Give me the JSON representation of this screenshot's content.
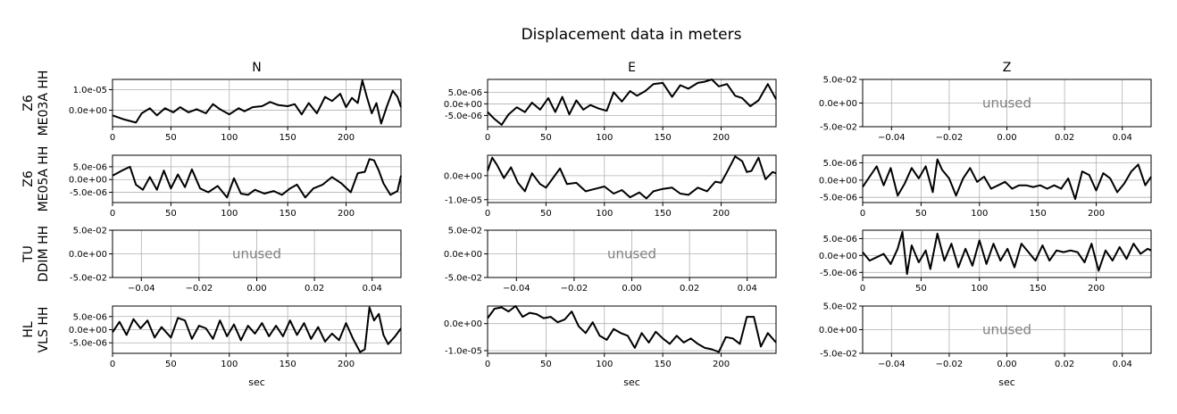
{
  "chart_data": {
    "type": "line",
    "title": "Displacement data in meters",
    "columns": [
      "N",
      "E",
      "Z"
    ],
    "row_labels": [
      [
        "Z6",
        "ME03A HH"
      ],
      [
        "Z6",
        "ME05A HH"
      ],
      [
        "TU",
        "DDIM HH"
      ],
      [
        "HL",
        "VLS HH"
      ]
    ],
    "xlabel": "sec",
    "unused_label": "unused",
    "line_color": "#000000",
    "grid": true,
    "panels": [
      {
        "id": "r0c0",
        "row": 0,
        "col": 0,
        "unused": false,
        "xlim": [
          0,
          247
        ],
        "ylim": [
          -8e-06,
          1.5e-05
        ],
        "xticks": [
          0,
          50,
          100,
          150,
          200
        ],
        "xticklabels": [
          "0",
          "50",
          "100",
          "150",
          "200"
        ],
        "yticks": [
          1e-05,
          0
        ],
        "yticklabels": [
          "1.0e-05",
          "0.0e+00"
        ],
        "x": [
          0,
          10,
          20,
          25,
          32,
          38,
          45,
          52,
          58,
          65,
          72,
          80,
          86,
          92,
          100,
          108,
          113,
          120,
          128,
          135,
          142,
          150,
          156,
          162,
          168,
          175,
          182,
          188,
          195,
          200,
          205,
          210,
          214,
          218,
          222,
          226,
          230,
          235,
          240,
          244,
          247
        ],
        "values": [
          -2.5e-06,
          -4.5e-06,
          -6e-06,
          -1.5e-06,
          1e-06,
          -2.5e-06,
          1e-06,
          -1e-06,
          1.5e-06,
          -1e-06,
          5e-07,
          -1.5e-06,
          3e-06,
          5e-07,
          -2e-06,
          1e-06,
          -5e-07,
          1.5e-06,
          2e-06,
          4e-06,
          2.5e-06,
          2e-06,
          3e-06,
          -2e-06,
          3.5e-06,
          -1.5e-06,
          6.5e-06,
          4.5e-06,
          8e-06,
          1.5e-06,
          6e-06,
          3.5e-06,
          1.45e-05,
          6e-06,
          -1.5e-06,
          3.5e-06,
          -6.5e-06,
          2e-06,
          9.5e-06,
          6.5e-06,
          1.5e-06
        ]
      },
      {
        "id": "r0c1",
        "row": 0,
        "col": 1,
        "unused": false,
        "xlim": [
          0,
          247
        ],
        "ylim": [
          -9.8e-06,
          1.05e-05
        ],
        "xticks": [
          0,
          50,
          100,
          150,
          200
        ],
        "xticklabels": [
          "0",
          "50",
          "100",
          "150",
          "200"
        ],
        "yticks": [
          5e-06,
          0,
          -5e-06
        ],
        "yticklabels": [
          "5.0e-06",
          "0.0e+00",
          "-5.0e-06"
        ],
        "x": [
          0,
          6,
          12,
          18,
          25,
          32,
          38,
          45,
          52,
          58,
          64,
          70,
          76,
          82,
          88,
          95,
          102,
          108,
          115,
          122,
          128,
          135,
          142,
          150,
          158,
          165,
          172,
          180,
          186,
          192,
          198,
          205,
          212,
          218,
          225,
          232,
          240,
          247
        ],
        "values": [
          -3.5e-06,
          -6.5e-06,
          -9e-06,
          -4.5e-06,
          -1.5e-06,
          -3.5e-06,
          5e-07,
          -2.5e-06,
          2.5e-06,
          -3.5e-06,
          3e-06,
          -4.5e-06,
          1.5e-06,
          -2.5e-06,
          -5e-07,
          -2e-06,
          -3e-06,
          5e-06,
          1e-06,
          5.5e-06,
          3.5e-06,
          5.5e-06,
          8.5e-06,
          9e-06,
          3e-06,
          8e-06,
          6.5e-06,
          9e-06,
          9.5e-06,
          1.1e-05,
          7.5e-06,
          8.5e-06,
          3.5e-06,
          2.5e-06,
          -1e-06,
          1.5e-06,
          8.5e-06,
          2e-06
        ]
      },
      {
        "id": "r0c2",
        "row": 0,
        "col": 2,
        "unused": true,
        "xlim": [
          -0.05,
          0.05
        ],
        "ylim": [
          -0.05,
          0.05
        ],
        "xticks": [
          -0.04,
          -0.02,
          0,
          0.02,
          0.04
        ],
        "xticklabels": [
          "−0.04",
          "−0.02",
          "0.00",
          "0.02",
          "0.04"
        ],
        "yticks": [
          0.05,
          0,
          -0.05
        ],
        "yticklabels": [
          "5.0e-02",
          "0.0e+00",
          "-5.0e-02"
        ]
      },
      {
        "id": "r1c0",
        "row": 1,
        "col": 0,
        "unused": false,
        "xlim": [
          0,
          247
        ],
        "ylim": [
          -9e-06,
          9.5e-06
        ],
        "xticks": [
          0,
          50,
          100,
          150,
          200
        ],
        "xticklabels": [
          "0",
          "50",
          "100",
          "150",
          "200"
        ],
        "yticks": [
          5e-06,
          0,
          -5e-06
        ],
        "yticklabels": [
          "5.0e-06",
          "0.0e+00",
          "-5.0e-06"
        ],
        "x": [
          0,
          8,
          15,
          20,
          26,
          32,
          38,
          44,
          50,
          56,
          62,
          68,
          75,
          82,
          90,
          98,
          104,
          110,
          116,
          122,
          130,
          138,
          145,
          152,
          158,
          165,
          172,
          180,
          188,
          196,
          204,
          210,
          216,
          220,
          224,
          228,
          232,
          238,
          244,
          247
        ],
        "values": [
          1.5e-06,
          3.5e-06,
          5e-06,
          -2e-06,
          -4e-06,
          1e-06,
          -4e-06,
          3.5e-06,
          -3.5e-06,
          2e-06,
          -3e-06,
          4e-06,
          -3.5e-06,
          -5e-06,
          -2.5e-06,
          -7e-06,
          5e-07,
          -5.5e-06,
          -6e-06,
          -4e-06,
          -5.5e-06,
          -4.5e-06,
          -6e-06,
          -3.5e-06,
          -2e-06,
          -7e-06,
          -3.5e-06,
          -2e-06,
          1e-06,
          -1.5e-06,
          -5e-06,
          2.5e-06,
          3e-06,
          8e-06,
          7.5e-06,
          3.5e-06,
          -1.5e-06,
          -6e-06,
          -4.5e-06,
          1.5e-06
        ]
      },
      {
        "id": "r1c1",
        "row": 1,
        "col": 1,
        "unused": false,
        "xlim": [
          0,
          247
        ],
        "ylim": [
          -1.12e-05,
          8.5e-06
        ],
        "xticks": [
          0,
          50,
          100,
          150,
          200
        ],
        "xticklabels": [
          "0",
          "50",
          "100",
          "150",
          "200"
        ],
        "yticks": [
          0,
          -1e-05
        ],
        "yticklabels": [
          "0.0e+00",
          "-1.0e-05"
        ],
        "x": [
          0,
          4,
          8,
          14,
          20,
          26,
          32,
          38,
          45,
          50,
          56,
          62,
          68,
          76,
          84,
          92,
          100,
          108,
          115,
          122,
          130,
          136,
          142,
          150,
          158,
          165,
          172,
          180,
          188,
          195,
          200,
          205,
          212,
          218,
          222,
          226,
          232,
          238,
          244,
          247
        ],
        "values": [
          2e-06,
          7.5e-06,
          4.5e-06,
          -1e-06,
          3.5e-06,
          -3e-06,
          -6.5e-06,
          1e-06,
          -3.5e-06,
          -5e-06,
          -1e-06,
          3e-06,
          -3.5e-06,
          -3e-06,
          -6.5e-06,
          -5.5e-06,
          -4.5e-06,
          -7.5e-06,
          -6e-06,
          -9e-06,
          -7e-06,
          -9.5e-06,
          -6.5e-06,
          -5.5e-06,
          -5e-06,
          -7.5e-06,
          -8e-06,
          -5e-06,
          -6.5e-06,
          -2.5e-06,
          -3e-06,
          1.5e-06,
          8e-06,
          6e-06,
          1.5e-06,
          2e-06,
          7.5e-06,
          -1.5e-06,
          1.5e-06,
          1e-06
        ]
      },
      {
        "id": "r1c2",
        "row": 1,
        "col": 2,
        "unused": false,
        "xlim": [
          0,
          247
        ],
        "ylim": [
          -6.5e-06,
          7.2e-06
        ],
        "xticks": [
          0,
          50,
          100,
          150,
          200
        ],
        "xticklabels": [
          "0",
          "50",
          "100",
          "150",
          "200"
        ],
        "yticks": [
          5e-06,
          0,
          -5e-06
        ],
        "yticklabels": [
          "5.0e-06",
          "0.0e+00",
          "-5.0e-06"
        ],
        "x": [
          0,
          6,
          12,
          18,
          24,
          30,
          36,
          42,
          48,
          54,
          60,
          64,
          68,
          74,
          80,
          86,
          92,
          98,
          104,
          110,
          116,
          122,
          128,
          134,
          140,
          146,
          152,
          158,
          164,
          170,
          176,
          182,
          188,
          194,
          200,
          206,
          212,
          218,
          224,
          230,
          236,
          242,
          247
        ],
        "values": [
          -2e-06,
          1e-06,
          4e-06,
          -1.5e-06,
          3.5e-06,
          -4.5e-06,
          -1e-06,
          3.5e-06,
          5e-07,
          4e-06,
          -3.5e-06,
          6e-06,
          3e-06,
          5e-07,
          -4.5e-06,
          5e-07,
          3.5e-06,
          -5e-07,
          1e-06,
          -2.5e-06,
          -1.5e-06,
          -5e-07,
          -2.5e-06,
          -1.5e-06,
          -1.5e-06,
          -2e-06,
          -1.5e-06,
          -2.5e-06,
          -1.5e-06,
          -2.5e-06,
          5e-07,
          -5.5e-06,
          2.5e-06,
          1.5e-06,
          -3e-06,
          2e-06,
          5e-07,
          -3.5e-06,
          -1e-06,
          2.5e-06,
          4.5e-06,
          -1.5e-06,
          1e-06
        ]
      },
      {
        "id": "r2c0",
        "row": 2,
        "col": 0,
        "unused": true,
        "xlim": [
          -0.05,
          0.05
        ],
        "ylim": [
          -0.05,
          0.05
        ],
        "xticks": [
          -0.04,
          -0.02,
          0,
          0.02,
          0.04
        ],
        "xticklabels": [
          "−0.04",
          "−0.02",
          "0.00",
          "0.02",
          "0.04"
        ],
        "yticks": [
          0.05,
          0,
          -0.05
        ],
        "yticklabels": [
          "5.0e-02",
          "0.0e+00",
          "-5.0e-02"
        ]
      },
      {
        "id": "r2c1",
        "row": 2,
        "col": 1,
        "unused": true,
        "xlim": [
          -0.05,
          0.05
        ],
        "ylim": [
          -0.05,
          0.05
        ],
        "xticks": [
          -0.04,
          -0.02,
          0,
          0.02,
          0.04
        ],
        "xticklabels": [
          "−0.04",
          "−0.02",
          "0.00",
          "0.02",
          "0.04"
        ],
        "yticks": [
          0.05,
          0,
          -0.05
        ],
        "yticklabels": [
          "5.0e-02",
          "0.0e+00",
          "-5.0e-02"
        ]
      },
      {
        "id": "r2c2",
        "row": 2,
        "col": 2,
        "unused": false,
        "xlim": [
          0,
          247
        ],
        "ylim": [
          -6.5e-06,
          7.5e-06
        ],
        "xticks": [
          0,
          50,
          100,
          150,
          200
        ],
        "xticklabels": [
          "0",
          "50",
          "100",
          "150",
          "200"
        ],
        "yticks": [
          5e-06,
          0,
          -5e-06
        ],
        "yticklabels": [
          "5.0e-06",
          "0.0e+00",
          "-5.0e-06"
        ],
        "x": [
          0,
          6,
          12,
          18,
          24,
          30,
          34,
          38,
          42,
          48,
          54,
          58,
          64,
          70,
          76,
          82,
          88,
          94,
          100,
          106,
          112,
          118,
          124,
          130,
          136,
          142,
          148,
          154,
          160,
          166,
          172,
          178,
          184,
          190,
          196,
          202,
          208,
          214,
          220,
          226,
          232,
          238,
          244,
          247
        ],
        "values": [
          1e-06,
          -1.5e-06,
          -5e-07,
          5e-07,
          -2.5e-06,
          2e-06,
          7e-06,
          -5.5e-06,
          3e-06,
          -2e-06,
          1.5e-06,
          -4e-06,
          6.5e-06,
          -1.5e-06,
          3.5e-06,
          -3.5e-06,
          2e-06,
          -3e-06,
          4.5e-06,
          -2.5e-06,
          3.5e-06,
          -1.5e-06,
          2e-06,
          -3.5e-06,
          3.5e-06,
          1e-06,
          -1.5e-06,
          3e-06,
          -1.5e-06,
          1.5e-06,
          1e-06,
          1.5e-06,
          1e-06,
          -2e-06,
          3.5e-06,
          -4.5e-06,
          1.5e-06,
          -1.5e-06,
          2.5e-06,
          -1e-06,
          3.5e-06,
          5e-07,
          2e-06,
          1.5e-06
        ]
      },
      {
        "id": "r3c0",
        "row": 3,
        "col": 0,
        "unused": false,
        "xlim": [
          0,
          247
        ],
        "ylim": [
          -9e-06,
          9e-06
        ],
        "xticks": [
          0,
          50,
          100,
          150,
          200
        ],
        "xticklabels": [
          "0",
          "50",
          "100",
          "150",
          "200"
        ],
        "yticks": [
          5e-06,
          0,
          -5e-06
        ],
        "yticklabels": [
          "5.0e-06",
          "0.0e+00",
          "-5.0e-06"
        ],
        "x": [
          0,
          6,
          12,
          18,
          24,
          30,
          36,
          42,
          50,
          56,
          62,
          68,
          74,
          80,
          86,
          92,
          98,
          104,
          110,
          116,
          122,
          128,
          134,
          140,
          146,
          152,
          158,
          164,
          170,
          176,
          182,
          188,
          194,
          200,
          206,
          212,
          216,
          220,
          224,
          228,
          232,
          236,
          242,
          247
        ],
        "values": [
          -1e-06,
          3e-06,
          -2e-06,
          4e-06,
          5e-07,
          3.5e-06,
          -3e-06,
          1e-06,
          -3e-06,
          4.5e-06,
          3.5e-06,
          -3.5e-06,
          1.5e-06,
          5e-07,
          -3.5e-06,
          3.5e-06,
          -2.5e-06,
          2e-06,
          -4e-06,
          1.5e-06,
          -1.5e-06,
          2.5e-06,
          -2.5e-06,
          1.5e-06,
          -2.5e-06,
          3.5e-06,
          -2e-06,
          2.5e-06,
          -3.5e-06,
          1e-06,
          -4.5e-06,
          -1.5e-06,
          -4e-06,
          2.5e-06,
          -3.5e-06,
          -8.5e-06,
          -7.5e-06,
          8.5e-06,
          3.5e-06,
          6e-06,
          -2e-06,
          -5.5e-06,
          -2.5e-06,
          5e-07
        ]
      },
      {
        "id": "r3c1",
        "row": 3,
        "col": 1,
        "unused": false,
        "xlim": [
          0,
          247
        ],
        "ylim": [
          -1.1e-05,
          6.5e-06
        ],
        "xticks": [
          0,
          50,
          100,
          150,
          200
        ],
        "xticklabels": [
          "0",
          "50",
          "100",
          "150",
          "200"
        ],
        "yticks": [
          0,
          -1e-05
        ],
        "yticklabels": [
          "0.0e+00",
          "-1.0e-05"
        ],
        "x": [
          0,
          6,
          12,
          18,
          24,
          30,
          36,
          42,
          48,
          54,
          60,
          66,
          72,
          78,
          84,
          90,
          96,
          102,
          108,
          114,
          120,
          126,
          132,
          138,
          144,
          150,
          156,
          162,
          168,
          174,
          180,
          186,
          192,
          198,
          204,
          210,
          216,
          222,
          228,
          234,
          240,
          247
        ],
        "values": [
          2e-06,
          5.5e-06,
          6e-06,
          4.5e-06,
          6.5e-06,
          2.5e-06,
          4e-06,
          3.5e-06,
          2e-06,
          2.5e-06,
          5e-07,
          1.5e-06,
          4.5e-06,
          -1e-06,
          -3.5e-06,
          5e-07,
          -4.5e-06,
          -6e-06,
          -2e-06,
          -3.5e-06,
          -4.5e-06,
          -9e-06,
          -3.5e-06,
          -7e-06,
          -3e-06,
          -5.5e-06,
          -7.5e-06,
          -4.5e-06,
          -7e-06,
          -5.5e-06,
          -7.5e-06,
          -9e-06,
          -9.5e-06,
          -1.05e-05,
          -5e-06,
          -5.5e-06,
          -7.5e-06,
          2.5e-06,
          2.5e-06,
          -8.5e-06,
          -3.5e-06,
          -7e-06
        ]
      },
      {
        "id": "r3c2",
        "row": 3,
        "col": 2,
        "unused": true,
        "xlim": [
          -0.05,
          0.05
        ],
        "ylim": [
          -0.05,
          0.05
        ],
        "xticks": [
          -0.04,
          -0.02,
          0,
          0.02,
          0.04
        ],
        "xticklabels": [
          "−0.04",
          "−0.02",
          "0.00",
          "0.02",
          "0.04"
        ],
        "yticks": [
          0.05,
          0,
          -0.05
        ],
        "yticklabels": [
          "5.0e-02",
          "0.0e+00",
          "-5.0e-02"
        ]
      }
    ]
  }
}
